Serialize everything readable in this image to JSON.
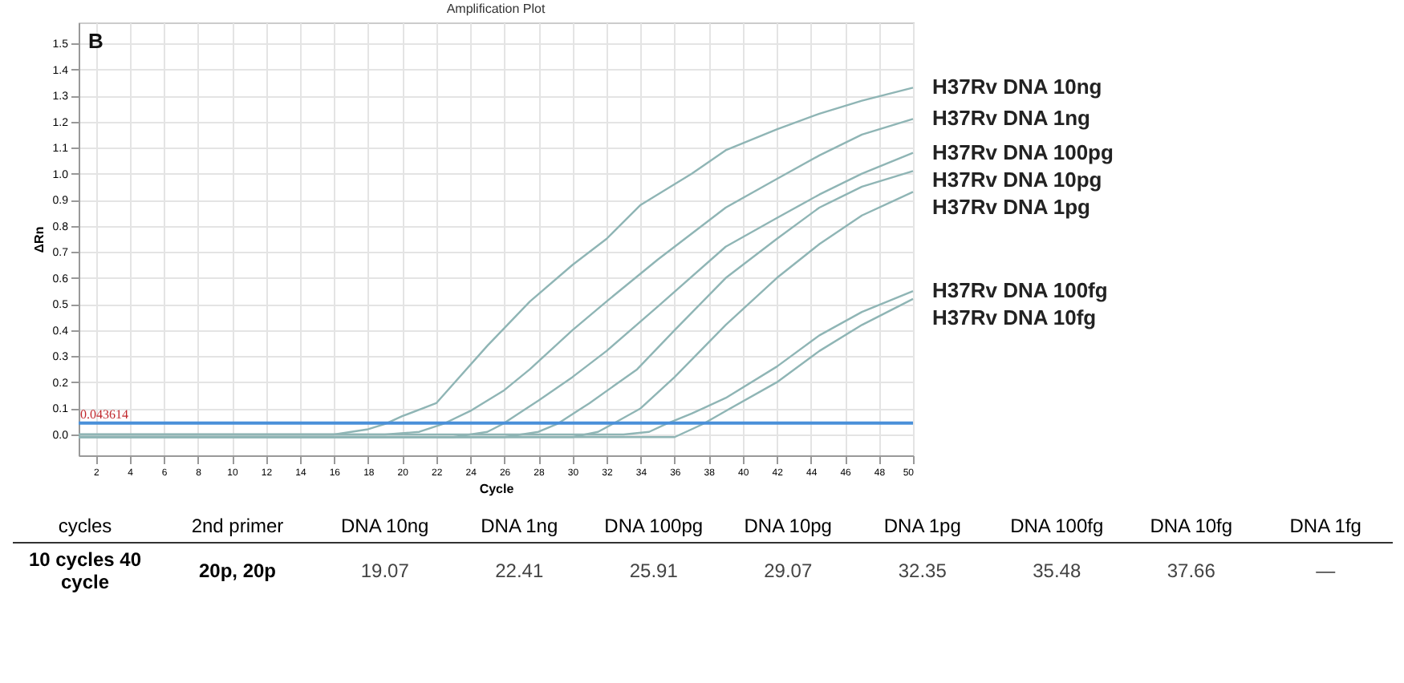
{
  "chart_data": {
    "type": "line",
    "title": "Amplification Plot",
    "xlabel": "Cycle",
    "ylabel": "ΔRn",
    "xlim": [
      1,
      50
    ],
    "xticks": [
      2,
      4,
      6,
      8,
      10,
      12,
      14,
      16,
      18,
      20,
      22,
      24,
      26,
      28,
      30,
      32,
      34,
      36,
      38,
      40,
      42,
      44,
      46,
      48,
      50
    ],
    "ylim": [
      -0.08,
      1.58
    ],
    "yticks": [
      {
        "value": 0,
        "label": "0.0"
      },
      0.1,
      0.2,
      0.3,
      0.4,
      0.5,
      0.6,
      0.7,
      0.8,
      0.9,
      {
        "value": 1,
        "label": "1.0"
      },
      1.1,
      1.2,
      1.3,
      1.4,
      1.5
    ],
    "grid": true,
    "marker": "none",
    "line_style": "solid",
    "ref_lines": [
      {
        "axis": "y",
        "value": 0.043614,
        "label": "0.043614",
        "color": "#4a90d9"
      }
    ],
    "series": [
      {
        "name": "H37Rv DNA 10ng",
        "color": "#8fb5b5",
        "x": [
          1,
          16,
          18,
          19,
          20,
          22,
          25,
          27.5,
          30,
          32,
          34,
          37,
          39,
          42,
          44.5,
          47,
          50
        ],
        "values": [
          0,
          0,
          0.02,
          0.04,
          0.07,
          0.12,
          0.34,
          0.51,
          0.65,
          0.75,
          0.88,
          1.0,
          1.09,
          1.17,
          1.23,
          1.28,
          1.33
        ]
      },
      {
        "name": "H37Rv DNA 1ng",
        "color": "#8fb5b5",
        "x": [
          1,
          19,
          21,
          22.4,
          24,
          26,
          27.5,
          30,
          32,
          35,
          39,
          42,
          44.5,
          47,
          50
        ],
        "values": [
          0,
          0,
          0.01,
          0.04,
          0.09,
          0.17,
          0.25,
          0.4,
          0.51,
          0.67,
          0.87,
          0.98,
          1.07,
          1.15,
          1.21
        ]
      },
      {
        "name": "H37Rv DNA 100pg",
        "color": "#8fb5b5",
        "x": [
          1,
          23,
          25,
          25.9,
          28,
          30,
          32,
          35,
          39,
          42,
          44.5,
          47,
          50
        ],
        "values": [
          -0.01,
          -0.01,
          0.01,
          0.04,
          0.13,
          0.22,
          0.32,
          0.49,
          0.72,
          0.83,
          0.92,
          1.0,
          1.08
        ]
      },
      {
        "name": "H37Rv DNA 10pg",
        "color": "#8fb5b5",
        "x": [
          1,
          26,
          28,
          29.1,
          31,
          33.8,
          36,
          39,
          42,
          44.5,
          47,
          50
        ],
        "values": [
          -0.01,
          -0.01,
          0.01,
          0.04,
          0.12,
          0.25,
          0.4,
          0.6,
          0.75,
          0.87,
          0.95,
          1.01
        ]
      },
      {
        "name": "H37Rv DNA 1pg",
        "color": "#8fb5b5",
        "x": [
          1,
          30,
          31.5,
          32.35,
          34,
          36,
          39,
          42,
          44.5,
          47,
          50
        ],
        "values": [
          -0.01,
          -0.01,
          0.01,
          0.04,
          0.1,
          0.22,
          0.42,
          0.6,
          0.73,
          0.84,
          0.93
        ]
      },
      {
        "name": "H37Rv DNA 100fg",
        "color": "#8fb5b5",
        "x": [
          1,
          33,
          34.5,
          35.5,
          37,
          39,
          42,
          44.5,
          47,
          50
        ],
        "values": [
          0,
          0,
          0.01,
          0.04,
          0.08,
          0.14,
          0.26,
          0.38,
          0.47,
          0.55
        ]
      },
      {
        "name": "H37Rv DNA 10fg",
        "color": "#8fb5b5",
        "x": [
          1,
          36,
          37,
          37.66,
          39,
          42,
          44.5,
          47,
          50
        ],
        "values": [
          -0.01,
          -0.01,
          0.02,
          0.04,
          0.09,
          0.2,
          0.32,
          0.42,
          0.52
        ]
      }
    ],
    "annotations": [
      "B",
      "cycles",
      "2nd primer",
      "DNA 10ng",
      "DNA 1ng",
      "DNA 100pg",
      "DNA 10pg",
      "DNA 1pg",
      "DNA 100fg",
      "DNA 10fg",
      "DNA 1fg",
      "10 cycles 40 cycle",
      "20p, 20p",
      "19.07",
      "22.41",
      "25.91",
      "29.07",
      "32.35",
      "35.48",
      "37.66",
      "—"
    ]
  }
}
